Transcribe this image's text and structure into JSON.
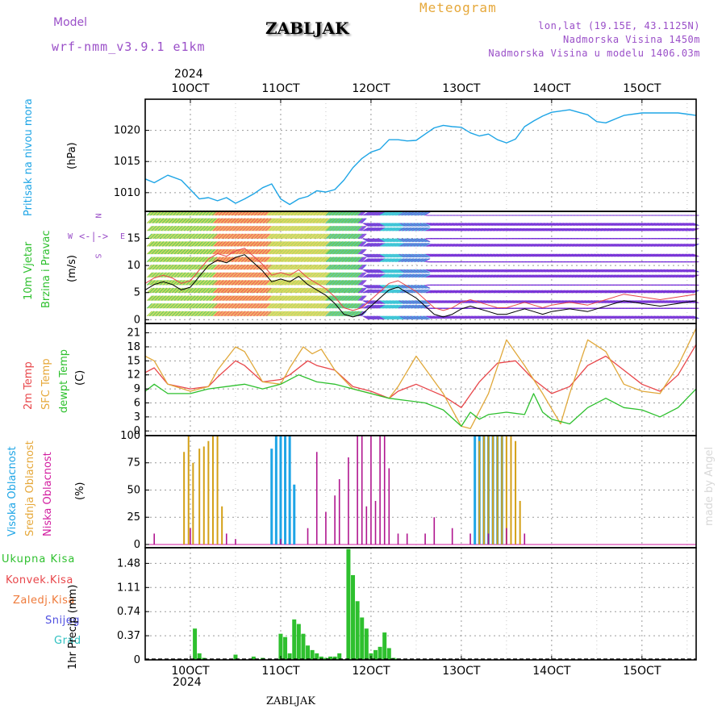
{
  "header": {
    "model_label": "Model",
    "model_value": "wrf-nmm_v3.9.1 e1km",
    "title": "ZABLJAK",
    "meteogram": "Meteogram",
    "lonlat": "lon,lat (19.15E, 43.1125N)",
    "altitude": "Nadmorska Visina 1450m",
    "altitude_model": "Nadmorska Visina u modelu 1406.03m"
  },
  "footer": {
    "station": "ZABLJAK",
    "credit": "made by Angel"
  },
  "colors": {
    "pressure": "#1ea5e6",
    "temp2m": "#e8464a",
    "sfc": "#e0a83a",
    "dew": "#2ec02e",
    "high_cloud": "#1ea5e6",
    "mid_cloud": "#d4a017",
    "low_cloud": "#b0168f",
    "precip": "#2ec02e",
    "grid": "#9a9a9a"
  },
  "chart_data": [
    {
      "type": "line",
      "panel": "pressure",
      "ylabel_left": "Pritisak na nivou mora",
      "ylabel_unit": "(hPa)",
      "xlabel_top_year": "2024",
      "x_ticks": [
        "10OCT",
        "11OCT",
        "12OCT",
        "13OCT",
        "14OCT",
        "15OCT"
      ],
      "x_range_days": [
        9.5,
        15.6
      ],
      "y_ticks": [
        1010,
        1015,
        1020
      ],
      "ylim": [
        1007,
        1025
      ],
      "series": [
        {
          "x": [
            9.5,
            9.6,
            9.75,
            9.9,
            10.0,
            10.1,
            10.2,
            10.3,
            10.4,
            10.5,
            10.6,
            10.7,
            10.8,
            10.9,
            11.0,
            11.1,
            11.2,
            11.3,
            11.4,
            11.5,
            11.6,
            11.7,
            11.8,
            11.9,
            12.0,
            12.1,
            12.2,
            12.3,
            12.4,
            12.5,
            12.6,
            12.7,
            12.8,
            12.9,
            13.0,
            13.1,
            13.2,
            13.3,
            13.4,
            13.5,
            13.6,
            13.7,
            13.8,
            13.9,
            14.0,
            14.2,
            14.4,
            14.5,
            14.6,
            14.8,
            15.0,
            15.2,
            15.4,
            15.5,
            15.6
          ],
          "y": [
            1012.2,
            1011.6,
            1012.8,
            1012.0,
            1010.5,
            1009.0,
            1009.2,
            1008.7,
            1009.2,
            1008.3,
            1009.0,
            1009.8,
            1010.8,
            1011.4,
            1009.0,
            1008.1,
            1009.0,
            1009.4,
            1010.3,
            1010.1,
            1010.5,
            1012.0,
            1014.0,
            1015.5,
            1016.5,
            1017.0,
            1018.5,
            1018.5,
            1018.3,
            1018.4,
            1019.4,
            1020.4,
            1020.8,
            1020.6,
            1020.5,
            1019.6,
            1019.1,
            1019.4,
            1018.5,
            1018.0,
            1018.6,
            1020.6,
            1021.5,
            1022.3,
            1022.9,
            1023.3,
            1022.5,
            1021.4,
            1021.2,
            1022.4,
            1022.8,
            1022.8,
            1022.8,
            1022.6,
            1022.4
          ]
        }
      ]
    },
    {
      "type": "line",
      "panel": "wind",
      "ylabel_left_1": "10m Vjetar",
      "ylabel_left_2": "Brzina i Pravac",
      "ylabel_unit": "(m/s)",
      "compass": {
        "n": "N",
        "s": "S",
        "e": "E",
        "w": "W"
      },
      "y_ticks": [
        0,
        5,
        10,
        15
      ],
      "ylim": [
        -0.7,
        20
      ],
      "series": [
        {
          "name": "wind speed",
          "x": [
            9.5,
            9.6,
            9.7,
            9.8,
            9.9,
            10.0,
            10.1,
            10.2,
            10.3,
            10.4,
            10.5,
            10.6,
            10.7,
            10.8,
            10.9,
            11.0,
            11.1,
            11.2,
            11.3,
            11.4,
            11.5,
            11.6,
            11.7,
            11.8,
            11.9,
            12.0,
            12.1,
            12.2,
            12.3,
            12.4,
            12.5,
            12.6,
            12.7,
            12.8,
            12.9,
            13.0,
            13.1,
            13.2,
            13.3,
            13.4,
            13.5,
            13.6,
            13.7,
            13.8,
            13.9,
            14.0,
            14.2,
            14.4,
            14.6,
            14.8,
            15.0,
            15.2,
            15.4,
            15.6
          ],
          "y": [
            5.5,
            6.5,
            7.0,
            6.5,
            5.5,
            6.0,
            8.0,
            10.0,
            11.0,
            10.5,
            11.5,
            12.0,
            10.5,
            9.0,
            7.0,
            7.5,
            7.0,
            8.0,
            6.5,
            5.5,
            4.5,
            3.0,
            1.0,
            0.5,
            1.0,
            2.5,
            4.0,
            5.5,
            6.0,
            5.0,
            4.0,
            2.5,
            1.0,
            0.5,
            1.0,
            2.0,
            2.5,
            2.0,
            1.5,
            1.0,
            1.0,
            1.5,
            2.0,
            1.5,
            1.0,
            1.5,
            2.0,
            1.5,
            2.5,
            3.5,
            3.0,
            2.5,
            3.0,
            3.5
          ]
        }
      ]
    },
    {
      "type": "line",
      "panel": "temperature",
      "ylabel_left_1": "2m Temp",
      "ylabel_left_2": "SFC Temp",
      "ylabel_left_3": "dewpt Temp",
      "ylabel_unit": "(C)",
      "y_ticks": [
        0,
        3,
        6,
        9,
        12,
        15,
        18,
        21
      ],
      "ylim": [
        -1,
        23
      ],
      "series": [
        {
          "name": "2m Temp",
          "x": [
            9.5,
            9.6,
            9.75,
            10.0,
            10.2,
            10.3,
            10.5,
            10.6,
            10.8,
            11.0,
            11.1,
            11.3,
            11.4,
            11.6,
            11.8,
            12.0,
            12.2,
            12.3,
            12.5,
            12.8,
            13.0,
            13.2,
            13.4,
            13.6,
            13.8,
            14.0,
            14.2,
            14.4,
            14.6,
            14.8,
            15.0,
            15.2,
            15.4,
            15.6
          ],
          "y": [
            12.5,
            13.5,
            10.0,
            9.0,
            9.5,
            11.5,
            15.0,
            14.0,
            10.5,
            11.0,
            12.0,
            15.0,
            14.0,
            13.0,
            9.5,
            8.5,
            7.0,
            8.5,
            10.0,
            7.5,
            5.0,
            10.5,
            14.5,
            15.0,
            11.0,
            8.0,
            9.5,
            14.0,
            16.0,
            13.0,
            10.0,
            8.5,
            12.0,
            18.5
          ]
        },
        {
          "name": "SFC Temp",
          "x": [
            9.5,
            9.6,
            9.75,
            10.0,
            10.2,
            10.3,
            10.5,
            10.6,
            10.8,
            11.0,
            11.1,
            11.25,
            11.35,
            11.45,
            11.6,
            11.8,
            12.0,
            12.2,
            12.3,
            12.5,
            12.8,
            13.0,
            13.1,
            13.3,
            13.5,
            13.7,
            13.9,
            14.1,
            14.2,
            14.4,
            14.6,
            14.8,
            15.0,
            15.2,
            15.4,
            15.6
          ],
          "y": [
            16.0,
            15.0,
            10.0,
            8.5,
            9.5,
            13.0,
            18.0,
            17.0,
            10.5,
            10.0,
            13.5,
            18.0,
            16.5,
            17.5,
            13.0,
            9.0,
            8.0,
            7.0,
            9.5,
            16.0,
            8.0,
            1.0,
            0.5,
            8.0,
            19.5,
            14.0,
            8.0,
            1.5,
            8.0,
            19.5,
            17.0,
            10.0,
            8.5,
            8.0,
            14.0,
            22.0
          ]
        },
        {
          "name": "dewpt Temp",
          "x": [
            9.5,
            9.6,
            9.75,
            10.0,
            10.2,
            10.4,
            10.6,
            10.8,
            11.0,
            11.2,
            11.4,
            11.6,
            11.8,
            12.0,
            12.2,
            12.4,
            12.6,
            12.8,
            13.0,
            13.1,
            13.2,
            13.3,
            13.5,
            13.7,
            13.8,
            13.9,
            14.0,
            14.2,
            14.4,
            14.6,
            14.8,
            15.0,
            15.2,
            15.4,
            15.6
          ],
          "y": [
            8.5,
            10.0,
            8.0,
            8.0,
            9.0,
            9.5,
            10.0,
            9.0,
            10.0,
            12.0,
            10.5,
            10.0,
            9.0,
            8.0,
            7.0,
            6.5,
            6.0,
            4.5,
            1.0,
            4.0,
            2.5,
            3.5,
            4.0,
            3.5,
            8.0,
            4.0,
            2.5,
            1.5,
            5.0,
            7.0,
            5.0,
            4.5,
            3.0,
            5.0,
            9.0
          ]
        }
      ]
    },
    {
      "type": "bar",
      "panel": "cloud",
      "ylabel_left_1": "Visoka Oblacnost",
      "ylabel_left_2": "Srednja Oblacnost",
      "ylabel_left_3": "Niska Oblacnost",
      "ylabel_unit": "(%)",
      "y_ticks": [
        0,
        25,
        50,
        75,
        100
      ],
      "ylim": [
        -3,
        100
      ],
      "series": [
        {
          "name": "Visoka Oblacnost",
          "x": [
            10.9,
            10.95,
            11.0,
            11.05,
            11.1,
            11.15,
            13.15,
            13.2,
            13.25,
            13.3,
            13.35,
            13.4,
            13.45
          ],
          "y": [
            88,
            100,
            100,
            100,
            100,
            55,
            100,
            100,
            100,
            100,
            100,
            100,
            100
          ]
        },
        {
          "name": "Srednja Oblacnost",
          "x": [
            9.93,
            9.98,
            10.03,
            10.1,
            10.15,
            10.2,
            10.25,
            10.3,
            10.35,
            13.2,
            13.25,
            13.3,
            13.35,
            13.4,
            13.45,
            13.5,
            13.55,
            13.6,
            13.65
          ],
          "y": [
            85,
            100,
            75,
            88,
            90,
            95,
            100,
            100,
            35,
            95,
            100,
            100,
            100,
            100,
            100,
            100,
            100,
            95,
            40
          ]
        },
        {
          "name": "Niska Oblacnost",
          "x": [
            9.6,
            10.0,
            10.4,
            10.5,
            11.0,
            11.3,
            11.4,
            11.5,
            11.6,
            11.65,
            11.75,
            11.85,
            11.9,
            11.95,
            12.0,
            12.05,
            12.1,
            12.15,
            12.2,
            12.3,
            12.4,
            12.6,
            12.7,
            12.9,
            13.1,
            13.3,
            13.5,
            13.7
          ],
          "y": [
            10,
            15,
            10,
            5,
            5,
            15,
            85,
            30,
            45,
            60,
            80,
            100,
            100,
            35,
            100,
            40,
            100,
            100,
            70,
            10,
            10,
            10,
            25,
            15,
            10,
            10,
            15,
            10
          ]
        }
      ]
    },
    {
      "type": "bar",
      "panel": "precip",
      "ylabel_left_1": "Ukupna Kisa",
      "ylabel_left_2": "Konvek.Kisa",
      "ylabel_left_3": "Zaledj.Kisa",
      "ylabel_left_4": "Snijeg",
      "ylabel_left_5": "Grad",
      "ylabel_unit": "1hr Precip (mm)",
      "y_ticks": [
        0,
        0.37,
        0.74,
        1.11,
        1.48
      ],
      "y_tick_labels": [
        "0",
        "0.37",
        "0.74",
        "1.11",
        "1.48"
      ],
      "ylim": [
        0,
        1.72
      ],
      "x_bottom_year": "2024",
      "series": [
        {
          "name": "Ukupna Kisa",
          "x": [
            10.05,
            10.1,
            10.15,
            10.5,
            10.7,
            10.8,
            11.0,
            11.05,
            11.1,
            11.15,
            11.2,
            11.25,
            11.3,
            11.35,
            11.4,
            11.45,
            11.5,
            11.55,
            11.6,
            11.65,
            11.75,
            11.8,
            11.85,
            11.9,
            11.95,
            12.0,
            12.05,
            12.1,
            12.15,
            12.2,
            12.25,
            12.3
          ],
          "y": [
            0.48,
            0.1,
            0.03,
            0.08,
            0.05,
            0.03,
            0.4,
            0.35,
            0.1,
            0.62,
            0.55,
            0.4,
            0.22,
            0.15,
            0.1,
            0.05,
            0.03,
            0.05,
            0.05,
            0.1,
            1.7,
            1.3,
            0.9,
            0.65,
            0.48,
            0.1,
            0.15,
            0.2,
            0.42,
            0.18,
            0.03,
            0.02
          ]
        }
      ]
    }
  ]
}
